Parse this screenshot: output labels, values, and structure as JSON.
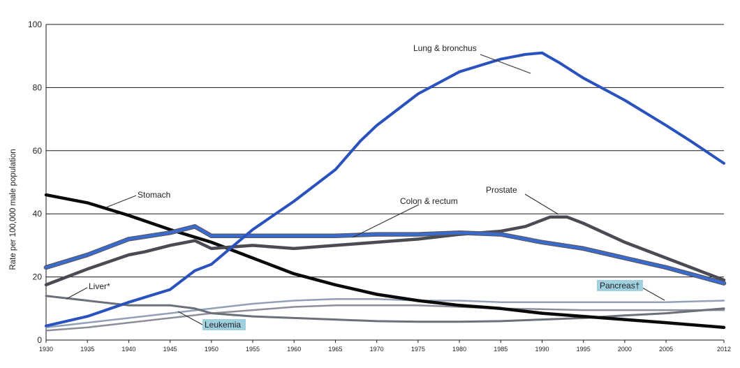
{
  "chart_data": {
    "type": "line",
    "title": "",
    "xlabel": "",
    "ylabel": "Rate per 100,000 male population",
    "xlim": [
      1930,
      2012
    ],
    "ylim": [
      0,
      100
    ],
    "yticks": [
      0,
      20,
      40,
      60,
      80,
      100
    ],
    "xticks": [
      1930,
      1935,
      1940,
      1945,
      1950,
      1955,
      1960,
      1965,
      1970,
      1975,
      1980,
      1985,
      1990,
      1995,
      2000,
      2005,
      2012
    ],
    "xtick_labels": [
      "1930",
      "1935",
      "1940",
      "1945",
      "1950",
      "1955",
      "1960",
      "1965",
      "1970",
      "1975",
      "1980",
      "1985",
      "1990",
      "1995",
      "2000",
      "2005",
      "2012"
    ],
    "ytick_labels": [
      "0",
      "20",
      "40",
      "60",
      "80",
      "100"
    ],
    "series": [
      {
        "name": "Lung & bronchus",
        "color": "#2a52be",
        "width": 4,
        "x": [
          1930,
          1935,
          1940,
          1945,
          1948,
          1950,
          1955,
          1960,
          1965,
          1968,
          1970,
          1975,
          1980,
          1985,
          1988,
          1990,
          1992,
          1995,
          2000,
          2005,
          2008,
          2012
        ],
        "values": [
          4.5,
          7.5,
          12,
          16,
          22,
          24,
          35,
          44,
          54,
          63,
          68,
          78,
          85,
          89,
          90.5,
          91,
          88,
          83,
          76,
          68,
          63,
          56
        ]
      },
      {
        "name": "Colon & rectum",
        "color": "#3a6bd0",
        "outline": "#555a66",
        "width": 4,
        "x": [
          1930,
          1935,
          1940,
          1945,
          1948,
          1950,
          1955,
          1960,
          1965,
          1970,
          1975,
          1980,
          1985,
          1990,
          1995,
          2000,
          2005,
          2012
        ],
        "values": [
          23,
          27,
          32,
          34,
          36,
          33,
          33,
          33,
          33,
          33.5,
          33.5,
          34,
          33.5,
          31,
          29,
          26,
          23,
          18
        ]
      },
      {
        "name": "Prostate",
        "color": "#4b4b53",
        "width": 4.5,
        "x": [
          1930,
          1935,
          1940,
          1942,
          1945,
          1948,
          1950,
          1955,
          1960,
          1965,
          1970,
          1975,
          1980,
          1985,
          1988,
          1991,
          1993,
          1995,
          2000,
          2005,
          2012
        ],
        "values": [
          17.5,
          22.5,
          27,
          28,
          30,
          31.5,
          29,
          30,
          29,
          30,
          31,
          32,
          33.5,
          34.5,
          36,
          39,
          39,
          37,
          31,
          26,
          19
        ]
      },
      {
        "name": "Stomach",
        "color": "#0a0a0a",
        "width": 4.5,
        "x": [
          1930,
          1935,
          1940,
          1945,
          1950,
          1955,
          1960,
          1965,
          1970,
          1975,
          1980,
          1985,
          1990,
          1995,
          2000,
          2005,
          2012
        ],
        "values": [
          46,
          43.5,
          39.5,
          35,
          31,
          26,
          21,
          17.5,
          14.5,
          12.5,
          11,
          10,
          8.5,
          7.5,
          6.5,
          5.5,
          4
        ]
      },
      {
        "name": "Liver",
        "color": "#6b7079",
        "width": 3,
        "x": [
          1930,
          1935,
          1940,
          1945,
          1948,
          1950,
          1955,
          1960,
          1965,
          1970,
          1975,
          1980,
          1985,
          1990,
          1995,
          2000,
          2005,
          2012
        ],
        "values": [
          14,
          12.5,
          11,
          11,
          10,
          8.5,
          7.5,
          7,
          6.5,
          6,
          5.8,
          5.8,
          6,
          6.5,
          7,
          7.8,
          8.5,
          10
        ]
      },
      {
        "name": "Pancreas",
        "color": "#93a0ba",
        "width": 2.5,
        "x": [
          1930,
          1935,
          1940,
          1945,
          1950,
          1955,
          1960,
          1965,
          1970,
          1975,
          1980,
          1985,
          1990,
          1995,
          2000,
          2005,
          2012
        ],
        "values": [
          4,
          5.5,
          7,
          8.5,
          10,
          11.5,
          12.5,
          13,
          13,
          12.5,
          12.5,
          12,
          12,
          12,
          12,
          12,
          12.5
        ]
      },
      {
        "name": "Leukemia",
        "color": "#8a8f99",
        "width": 2.5,
        "x": [
          1930,
          1935,
          1940,
          1945,
          1950,
          1955,
          1960,
          1965,
          1970,
          1975,
          1980,
          1985,
          1990,
          1995,
          2000,
          2005,
          2012
        ],
        "values": [
          3,
          4,
          5.5,
          7,
          8.5,
          9.5,
          10.5,
          11,
          11,
          11,
          10.5,
          10,
          9.8,
          9.5,
          9.5,
          9.5,
          9.5
        ]
      }
    ],
    "annotations": {
      "lung": "Lung & bronchus",
      "colon": "Colon & rectum",
      "prostate": "Prostate",
      "stomach": "Stomach",
      "liver": "Liver*",
      "pancreas": "Pancreas†",
      "leukemia": "Leukemia"
    }
  }
}
